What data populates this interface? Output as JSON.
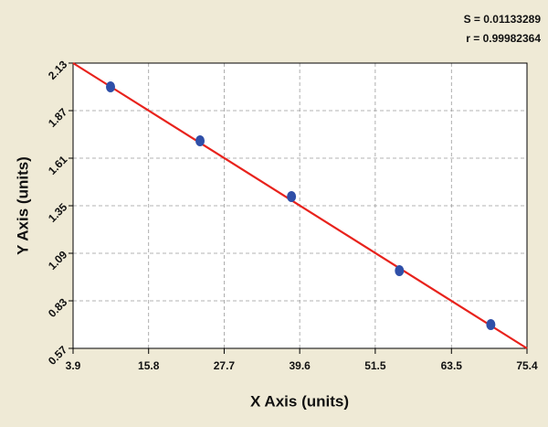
{
  "chart_data": {
    "type": "scatter",
    "x_label": "X Axis (units)",
    "y_label": "Y Axis (units)",
    "annotations": [
      "S = 0.01133289",
      "r = 0.99982364"
    ],
    "x": [
      9.8,
      23.9,
      38.3,
      55.3,
      69.7
    ],
    "y": [
      2.0,
      1.705,
      1.4,
      0.995,
      0.7
    ],
    "color": "#2f4fa8",
    "fit_line": {
      "x": [
        3.9,
        75.4
      ],
      "y": [
        2.13,
        0.57
      ],
      "color": "#e8221c"
    },
    "xlim": [
      3.9,
      75.4
    ],
    "xticks": [
      3.9,
      15.8,
      27.7,
      39.6,
      51.5,
      63.5,
      75.4
    ],
    "ylim": [
      0.57,
      2.13
    ],
    "yticks": [
      0.57,
      0.83,
      1.09,
      1.35,
      1.61,
      1.87,
      2.13
    ],
    "grid": true
  }
}
